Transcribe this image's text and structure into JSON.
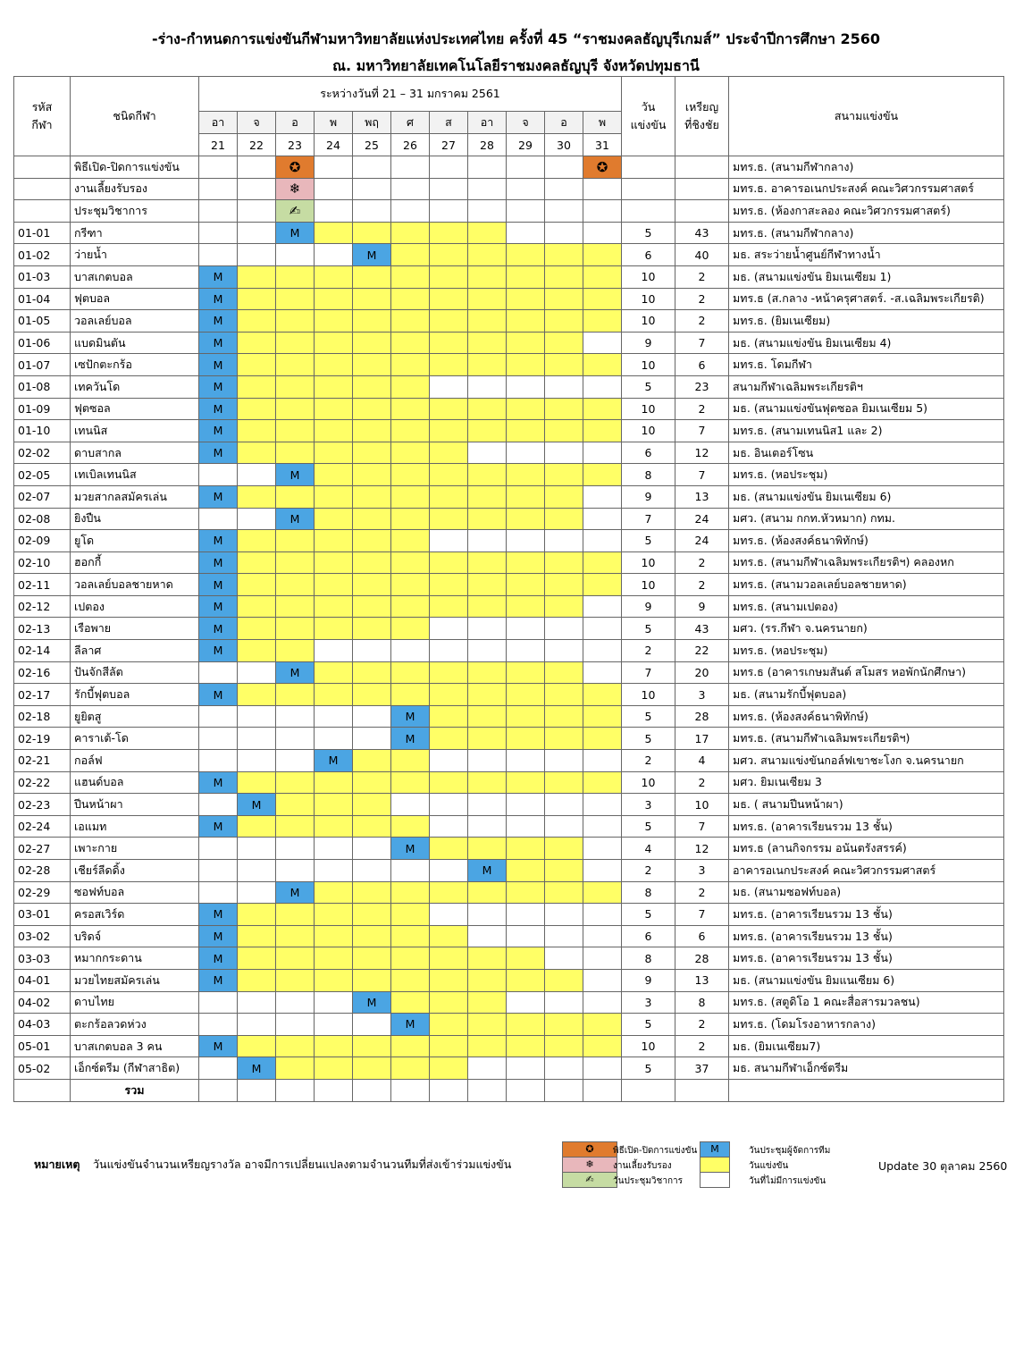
{
  "header": {
    "title": "-ร่าง-กำหนดการแข่งขันกีฬามหาวิทยาลัยแห่งประเทศไทย ครั้งที่ 45 “ราชมงคลธัญบุรีเกมส์” ประจำปีการศึกษา 2560",
    "subtitle": "ณ. มหาวิทยาลัยเทคโนโลยีราชมงคลธัญบุรี จังหวัดปทุมธานี"
  },
  "table": {
    "columns": {
      "code": "รหัส\nกีฬา",
      "sport": "ชนิดกีฬา",
      "period": "ระหว่างวันที่ 21 – 31 มกราคม 2561",
      "days": "วัน\nแข่งขัน",
      "medals": "เหรียญ\nที่ชิงชัย",
      "venue": "สนามแข่งขัน"
    },
    "weekdays": [
      "อา",
      "จ",
      "อ",
      "พ",
      "พฤ",
      "ศ",
      "ส",
      "อา",
      "จ",
      "อ",
      "พ"
    ],
    "dates": [
      21,
      22,
      23,
      24,
      25,
      26,
      27,
      28,
      29,
      30,
      31
    ],
    "rows": [
      {
        "sport": "พิธีเปิด-ปิดการแข่งขัน",
        "cells": "55055555550",
        "venue": "มทร.ธ. (สนามกีฬากลาง)"
      },
      {
        "sport": "งานเลี้ยงรับรอง",
        "cells": "55155555555",
        "venue": "มทร.ธ. อาคารอเนกประสงค์ คณะวิศวกรรมศาสตร์"
      },
      {
        "sport": "ประชุมวิชาการ",
        "cells": "55255555555",
        "venue": "มทร.ธ. (ห้องกาสะลอง คณะวิศวกรรมศาสตร์)"
      },
      {
        "code": "01-01",
        "sport": "กรีฑา",
        "cells": "55344444555",
        "days": 5,
        "medals": 43,
        "venue": "มทร.ธ. (สนามกีฬากลาง)"
      },
      {
        "code": "01-02",
        "sport": "ว่ายน้ำ",
        "cells": "55553444444",
        "days": 6,
        "medals": 40,
        "venue": "มธ. สระว่ายน้ำศูนย์กีฬาทางน้ำ"
      },
      {
        "code": "01-03",
        "sport": "บาสเกตบอล",
        "cells": "34444444444",
        "days": 10,
        "medals": 2,
        "venue": "มธ. (สนามแข่งขัน ยิมเนเซียม 1)"
      },
      {
        "code": "01-04",
        "sport": "ฟุตบอล",
        "cells": "34444444444",
        "days": 10,
        "medals": 2,
        "venue": "มทร.ธ (ส.กลาง -หน้าครุศาสตร์. -ส.เฉลิมพระเกียรติ)"
      },
      {
        "code": "01-05",
        "sport": "วอลเลย์บอล",
        "cells": "34444444444",
        "days": 10,
        "medals": 2,
        "venue": "มทร.ธ. (ยิมเนเซียม)"
      },
      {
        "code": "01-06",
        "sport": "แบดมินตัน",
        "cells": "34444444445",
        "days": 9,
        "medals": 7,
        "venue": "มธ. (สนามแข่งขัน ยิมเนเซียม 4)"
      },
      {
        "code": "01-07",
        "sport": "เซปักตะกร้อ",
        "cells": "34444444444",
        "days": 10,
        "medals": 6,
        "venue": "มทร.ธ. โดมกีฬา"
      },
      {
        "code": "01-08",
        "sport": "เทควันโด",
        "cells": "34444455555",
        "days": 5,
        "medals": 23,
        "venue": "สนามกีฬาเฉลิมพระเกียรติฯ"
      },
      {
        "code": "01-09",
        "sport": "ฟุตซอล",
        "cells": "34444444444",
        "days": 10,
        "medals": 2,
        "venue": "มธ. (สนามแข่งขันฟุตซอล ยิมเนเซียม 5)"
      },
      {
        "code": "01-10",
        "sport": "เทนนิส",
        "cells": "34444444444",
        "days": 10,
        "medals": 7,
        "venue": "มทร.ธ. (สนามเทนนิส1 และ 2)"
      },
      {
        "code": "02-02",
        "sport": "ดาบสากล",
        "cells": "34444445555",
        "days": 6,
        "medals": 12,
        "venue": "มธ. อินเตอร์โซน"
      },
      {
        "code": "02-05",
        "sport": "เทเบิลเทนนิส",
        "cells": "55344444444",
        "days": 8,
        "medals": 7,
        "venue": "มทร.ธ. (หอประชุม)"
      },
      {
        "code": "02-07",
        "sport": "มวยสากลสมัครเล่น",
        "cells": "34444444445",
        "days": 9,
        "medals": 13,
        "venue": "มธ. (สนามแข่งขัน ยิมเนเซียม 6)"
      },
      {
        "code": "02-08",
        "sport": "ยิงปืน",
        "cells": "55344444445",
        "days": 7,
        "medals": 24,
        "venue": "มศว. (สนาม กกท.หัวหมาก) กทม."
      },
      {
        "code": "02-09",
        "sport": "ยูโด",
        "cells": "34444455555",
        "days": 5,
        "medals": 24,
        "venue": "มทร.ธ. (ห้องสงค์ธนาพิทักษ์)"
      },
      {
        "code": "02-10",
        "sport": "ฮอกกี้",
        "cells": "34444444444",
        "days": 10,
        "medals": 2,
        "venue": "มทร.ธ. (สนามกีฬาเฉลิมพระเกียรติฯ) คลองหก"
      },
      {
        "code": "02-11",
        "sport": "วอลเลย์บอลชายหาด",
        "cells": "34444444444",
        "days": 10,
        "medals": 2,
        "venue": "มทร.ธ. (สนามวอลเลย์บอลชายหาด)"
      },
      {
        "code": "02-12",
        "sport": "เปตอง",
        "cells": "34444444445",
        "days": 9,
        "medals": 9,
        "venue": "มทร.ธ. (สนามเปตอง)"
      },
      {
        "code": "02-13",
        "sport": "เรือพาย",
        "cells": "34444455555",
        "days": 5,
        "medals": 43,
        "venue": "มศว. (รร.กีฬา จ.นครนายก)"
      },
      {
        "code": "02-14",
        "sport": "ลีลาศ",
        "cells": "34455555555",
        "days": 2,
        "medals": 22,
        "venue": "มทร.ธ. (หอประชุม)"
      },
      {
        "code": "02-16",
        "sport": "ปันจักสีลัต",
        "cells": "55344444445",
        "days": 7,
        "medals": 20,
        "venue": "มทร.ธ (อาคารเกษมสันต์ สโมสร หอพักนักศึกษา)"
      },
      {
        "code": "02-17",
        "sport": "รักบี้ฟุตบอล",
        "cells": "34444444444",
        "days": 10,
        "medals": 3,
        "venue": "มธ. (สนามรักบี้ฟุตบอล)"
      },
      {
        "code": "02-18",
        "sport": "ยูยิตสู",
        "cells": "55555344444",
        "days": 5,
        "medals": 28,
        "venue": "มทร.ธ. (ห้องสงค์ธนาพิทักษ์)"
      },
      {
        "code": "02-19",
        "sport": "คาราเต้-โด",
        "cells": "55555344444",
        "days": 5,
        "medals": 17,
        "venue": "มทร.ธ. (สนามกีฬาเฉลิมพระเกียรติฯ)"
      },
      {
        "code": "02-21",
        "sport": "กอล์ฟ",
        "cells": "55534455555",
        "days": 2,
        "medals": 4,
        "venue": "มศว. สนามแข่งขันกอล์ฟเขาชะโงก จ.นครนายก"
      },
      {
        "code": "02-22",
        "sport": "แฮนด์บอล",
        "cells": "34444444444",
        "days": 10,
        "medals": 2,
        "venue": "มศว. ยิมเนเซียม 3"
      },
      {
        "code": "02-23",
        "sport": "ปีนหน้าผา",
        "cells": "53444555555",
        "days": 3,
        "medals": 10,
        "venue": "มธ. ( สนามปีนหน้าผา)"
      },
      {
        "code": "02-24",
        "sport": "เอแมท",
        "cells": "34444455555",
        "days": 5,
        "medals": 7,
        "venue": "มทร.ธ. (อาคารเรียนรวม 13 ชั้น)"
      },
      {
        "code": "02-27",
        "sport": "เพาะกาย",
        "cells": "55555344445",
        "days": 4,
        "medals": 12,
        "venue": "มทร.ธ (ลานกิจกรรม อนันตรังสรรค์)"
      },
      {
        "code": "02-28",
        "sport": "เชียร์ลีดดิ้ง",
        "cells": "55555553445",
        "days": 2,
        "medals": 3,
        "venue": "อาคารอเนกประสงค์ คณะวิศวกรรมศาสตร์"
      },
      {
        "code": "02-29",
        "sport": "ซอฟท์บอล",
        "cells": "55344444444",
        "days": 8,
        "medals": 2,
        "venue": "มธ. (สนามซอฟท์บอล)"
      },
      {
        "code": "03-01",
        "sport": "ครอสเวิร์ด",
        "cells": "34444455555",
        "days": 5,
        "medals": 7,
        "venue": "มทร.ธ. (อาคารเรียนรวม 13 ชั้น)"
      },
      {
        "code": "03-02",
        "sport": "บริดจ์",
        "cells": "34444445555",
        "days": 6,
        "medals": 6,
        "venue": "มทร.ธ. (อาคารเรียนรวม 13 ชั้น)"
      },
      {
        "code": "03-03",
        "sport": "หมากกระดาน",
        "cells": "34444444455",
        "days": 8,
        "medals": 28,
        "venue": "มทร.ธ. (อาคารเรียนรวม 13 ชั้น)"
      },
      {
        "code": "04-01",
        "sport": "มวยไทยสมัครเล่น",
        "cells": "34444444445",
        "days": 9,
        "medals": 13,
        "venue": "มธ. (สนามแข่งขัน ยิมแนเซียม 6)"
      },
      {
        "code": "04-02",
        "sport": "ดาบไทย",
        "cells": "55553444555",
        "days": 3,
        "medals": 8,
        "venue": "มทร.ธ. (สตูดิโอ 1 คณะสื่อสารมวลชน)"
      },
      {
        "code": "04-03",
        "sport": "ตะกร้อลวดห่วง",
        "cells": "55555344444",
        "days": 5,
        "medals": 2,
        "venue": "มทร.ธ. (โดมโรงอาหารกลาง)"
      },
      {
        "code": "05-01",
        "sport": "บาสเกตบอล 3 คน",
        "cells": "34444444444",
        "days": 10,
        "medals": 2,
        "venue": "มธ. (ยิมเนเซียม7)"
      },
      {
        "code": "05-02",
        "sport": "เอ็กซ์ตรีม (กีฬาสาธิต)",
        "cells": "53444445555",
        "days": 5,
        "medals": 37,
        "venue": "มธ. สนามกีฬาเอ็กซ์ตรีม"
      }
    ],
    "total": "รวม"
  },
  "legend": [
    {
      "symbol": "✪",
      "label": "พิธีเปิด-ปิดการแข่งขัน",
      "color": "#e07b2e"
    },
    {
      "symbol": "❄",
      "label": "งานเลี้ยงรับรอง",
      "color": "#e8b7bb"
    },
    {
      "symbol": "✍",
      "label": "วันประชุมวิชาการ",
      "color": "#c6dca3"
    },
    {
      "symbol": "M",
      "label": "วันประชุมผู้จัดการทีม",
      "color": "#4ba5e3"
    },
    {
      "label": "วันแข่งขัน",
      "color": "#ffff66"
    },
    {
      "label": "วันที่ไม่มีการแข่งขัน",
      "color": "#ffffff"
    }
  ],
  "note": {
    "label": "หมายเหตุ",
    "text": "วันแข่งขันจำนวนเหรียญรางวัล อาจมีการเปลี่ยนแปลงตามจำนวนทีมที่ส่งเข้าร่วมแข่งขัน"
  },
  "update": "Update 30 ตุลาคม 2560"
}
